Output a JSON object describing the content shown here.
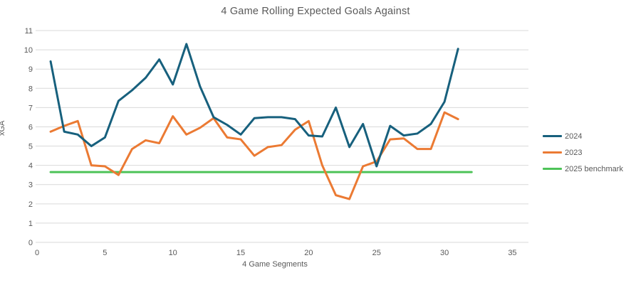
{
  "title": "4 Game Rolling Expected Goals Against",
  "chart_data": {
    "type": "line",
    "title": "4 Game Rolling Expected Goals Against",
    "xlabel": "4 Game Segments",
    "ylabel": "xGA",
    "xlim": [
      0,
      36
    ],
    "ylim": [
      0,
      11
    ],
    "x_ticks": [
      0,
      5,
      10,
      15,
      20,
      25,
      30,
      35
    ],
    "y_ticks": [
      0,
      1,
      2,
      3,
      4,
      5,
      6,
      7,
      8,
      9,
      10,
      11
    ],
    "grid": "horizontal",
    "legend_position": "right",
    "x": [
      1,
      2,
      3,
      4,
      5,
      6,
      7,
      8,
      9,
      10,
      11,
      12,
      13,
      14,
      15,
      16,
      17,
      18,
      19,
      20,
      21,
      22,
      23,
      24,
      25,
      26,
      27,
      28,
      29,
      30,
      31
    ],
    "series": [
      {
        "name": "2024",
        "color": "#17607D",
        "values": [
          9.4,
          5.75,
          5.6,
          5.0,
          5.45,
          7.35,
          7.9,
          8.55,
          9.5,
          8.2,
          10.3,
          8.1,
          6.5,
          6.1,
          5.6,
          6.45,
          6.5,
          6.5,
          6.4,
          5.55,
          5.5,
          7.0,
          4.95,
          6.15,
          3.95,
          6.05,
          5.55,
          5.65,
          6.15,
          7.3,
          10.05
        ]
      },
      {
        "name": "2023",
        "color": "#EB7A33",
        "values": [
          5.75,
          6.05,
          6.3,
          4.0,
          3.95,
          3.5,
          4.85,
          5.3,
          5.15,
          6.55,
          5.6,
          5.95,
          6.45,
          5.45,
          5.35,
          4.5,
          4.95,
          5.05,
          5.85,
          6.3,
          4.0,
          2.45,
          2.25,
          3.95,
          4.2,
          5.35,
          5.4,
          4.85,
          4.85,
          6.75,
          6.4
        ]
      },
      {
        "name": "2025 benchmark",
        "color": "#4DC358",
        "x": [
          1,
          32
        ],
        "values": [
          3.65,
          3.65
        ]
      }
    ],
    "gridline_color": "#D9D9D9",
    "text_color": "#595959"
  }
}
